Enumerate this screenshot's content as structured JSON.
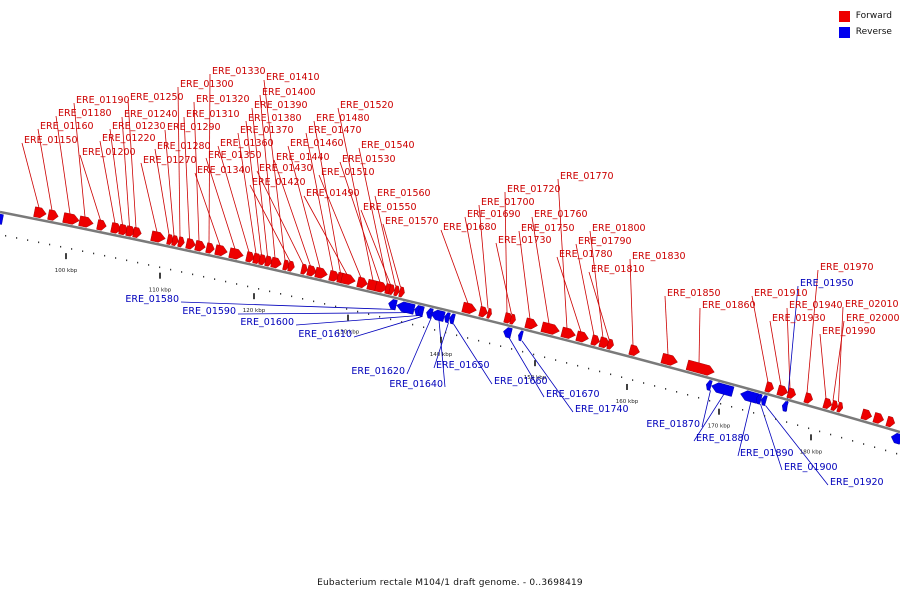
{
  "colors": {
    "forward": "#ee0000",
    "reverse": "#0000ee",
    "backbone": "#7a7a7a",
    "forward_label": "#cc0000",
    "reverse_label": "#0000bb"
  },
  "legend": {
    "forward": "Forward",
    "reverse": "Reverse"
  },
  "caption": "Eubacterium rectale M104/1 draft genome. - 0..3698419",
  "scale_labels": [
    "100 kbp",
    "110 kbp",
    "120 kbp",
    "130 kbp",
    "140 kbp",
    "150 kbp",
    "160 kbp",
    "170 kbp",
    "180 kbp"
  ],
  "forward_genes": [
    "ERE_01150",
    "ERE_01160",
    "ERE_01180",
    "ERE_01190",
    "ERE_01200",
    "ERE_01220",
    "ERE_01230",
    "ERE_01240",
    "ERE_01250",
    "ERE_01270",
    "ERE_01280",
    "ERE_01290",
    "ERE_01300",
    "ERE_01310",
    "ERE_01320",
    "ERE_01330",
    "ERE_01340",
    "ERE_01350",
    "ERE_01360",
    "ERE_01370",
    "ERE_01380",
    "ERE_01390",
    "ERE_01400",
    "ERE_01410",
    "ERE_01420",
    "ERE_01430",
    "ERE_01440",
    "ERE_01460",
    "ERE_01470",
    "ERE_01480",
    "ERE_01490",
    "ERE_01510",
    "ERE_01520",
    "ERE_01530",
    "ERE_01540",
    "ERE_01550",
    "ERE_01560",
    "ERE_01570",
    "ERE_01680",
    "ERE_01690",
    "ERE_01700",
    "ERE_01720",
    "ERE_01730",
    "ERE_01750",
    "ERE_01760",
    "ERE_01770",
    "ERE_01780",
    "ERE_01790",
    "ERE_01800",
    "ERE_01810",
    "ERE_01830",
    "ERE_01850",
    "ERE_01860",
    "ERE_01910",
    "ERE_01930",
    "ERE_01940",
    "ERE_01970",
    "ERE_01990",
    "ERE_02000",
    "ERE_02010"
  ],
  "reverse_genes": [
    "ERE_01580",
    "ERE_01590",
    "ERE_01600",
    "ERE_01610",
    "ERE_01620",
    "ERE_01640",
    "ERE_01650",
    "ERE_01660",
    "ERE_01670",
    "ERE_01740",
    "ERE_01870",
    "ERE_01880",
    "ERE_01890",
    "ERE_01900",
    "ERE_01920",
    "ERE_01950"
  ]
}
